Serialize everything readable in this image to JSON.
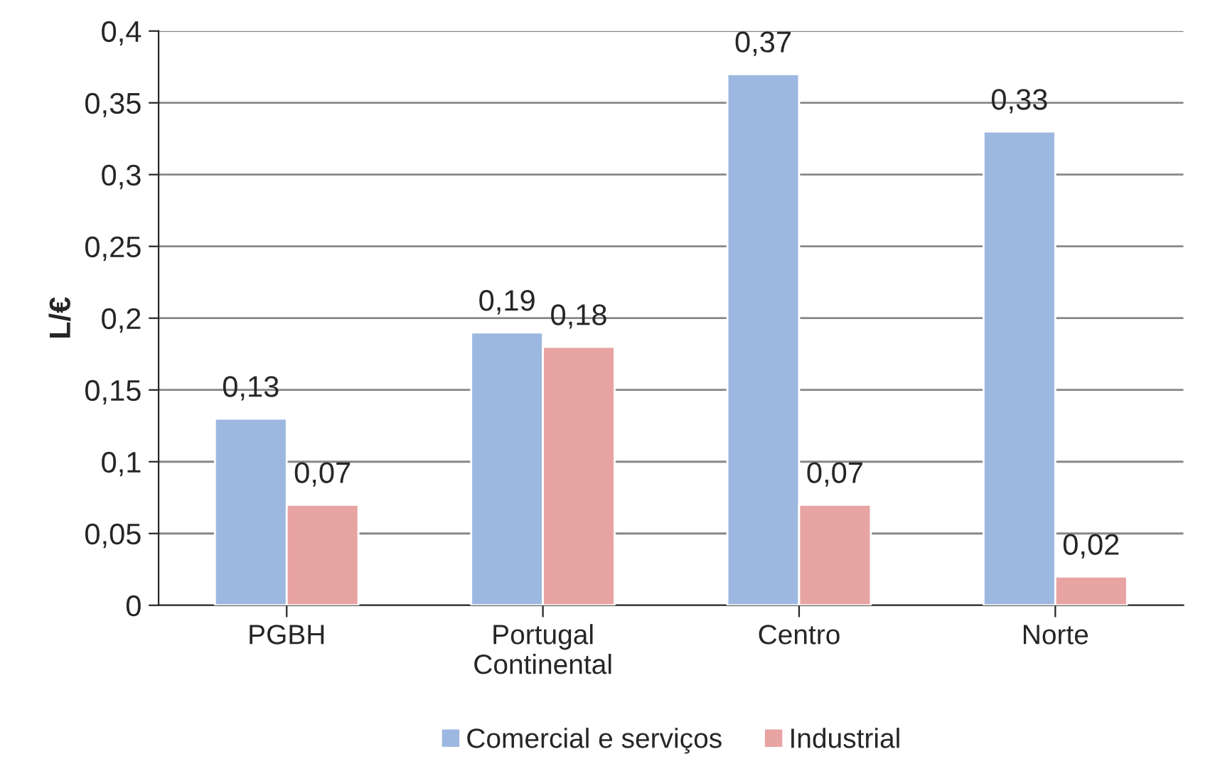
{
  "chart_data": {
    "type": "bar",
    "ylabel": "L/€",
    "categories": [
      "PGBH",
      "Portugal\nContinental",
      "Centro",
      "Norte"
    ],
    "series": [
      {
        "name": "Comercial e serviços",
        "color": "#9db8e0",
        "values": [
          0.13,
          0.19,
          0.37,
          0.33
        ],
        "value_labels": [
          "0,13",
          "0,19",
          "0,37",
          "0,33"
        ]
      },
      {
        "name": "Industrial",
        "color": "#e8a3a3",
        "values": [
          0.07,
          0.18,
          0.07,
          0.02
        ],
        "value_labels": [
          "0,07",
          "0,18",
          "0,07",
          "0,02"
        ]
      }
    ],
    "ylim": [
      0,
      0.4
    ],
    "yticks": [
      0,
      {
        "value": 0.05,
        "label": "0,05"
      },
      {
        "value": 0.1,
        "label": "0,1"
      },
      {
        "value": 0.15,
        "label": "0,15"
      },
      {
        "value": 0.2,
        "label": "0,2"
      },
      {
        "value": 0.25,
        "label": "0,25"
      },
      {
        "value": 0.3,
        "label": "0,3"
      },
      {
        "value": 0.35,
        "label": "0,35"
      },
      {
        "value": 0.4,
        "label": "0,4"
      }
    ],
    "grid": "y",
    "legend": "bottom"
  }
}
